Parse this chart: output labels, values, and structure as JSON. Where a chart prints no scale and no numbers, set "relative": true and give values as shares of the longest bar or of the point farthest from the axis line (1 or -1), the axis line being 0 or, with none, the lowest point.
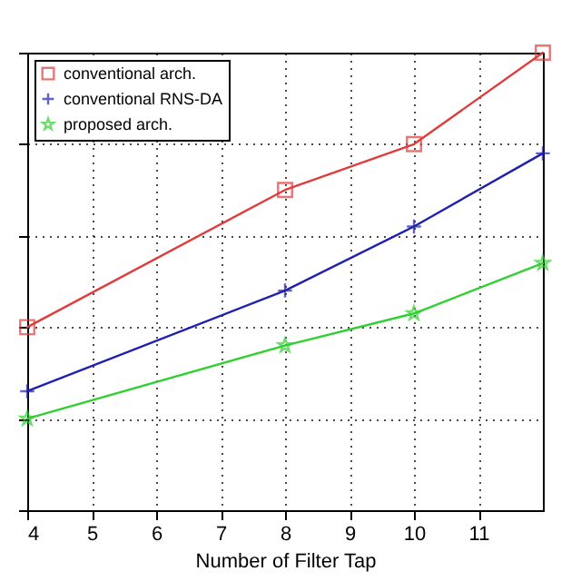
{
  "chart_data": {
    "type": "line",
    "relative": true,
    "xlabel": "Number of Filter Tap",
    "x": [
      4,
      8,
      10,
      12
    ],
    "xlim": [
      4,
      12
    ],
    "xticks": [
      4,
      5,
      6,
      7,
      8,
      9,
      10,
      11
    ],
    "grid": true,
    "legend": "top left",
    "series": [
      {
        "name": "conventional arch.",
        "color": "#e03c3c",
        "marker": "square",
        "values": [
          0.4,
          0.7,
          0.8,
          1
        ]
      },
      {
        "name": "conventional RNS-DA",
        "color": "#2020b0",
        "marker": "cross",
        "values": [
          0.26,
          0.48,
          0.62,
          0.78
        ]
      },
      {
        "name": "proposed arch.",
        "color": "#30d030",
        "marker": "star",
        "values": [
          0.2,
          0.36,
          0.43,
          0.54
        ]
      }
    ]
  }
}
